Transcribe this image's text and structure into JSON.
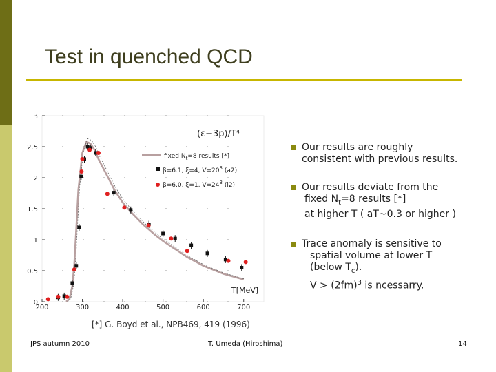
{
  "slide": {
    "title": "Test in quenched QCD",
    "bullets": [
      {
        "lines": [
          "Our results are roughly",
          "consistent with previous results."
        ]
      },
      {
        "lines": [
          "Our results deviate from the",
          "fixed N",
          "t",
          "=8 results [*]",
          "at higher T ( aT~0.3 or higher )"
        ]
      },
      {
        "lines": [
          "Trace anomaly is sensitive to",
          "spatial volume at lower T",
          "(below T",
          "c",
          ").",
          "V > (2fm)",
          "3",
          " is ncessarry."
        ]
      }
    ],
    "reference": "[*] G. Boyd et al., NPB469, 419 (1996)",
    "footer": {
      "left": "JPS autumn 2010",
      "center": "T. Umeda (Hiroshima)",
      "page": "14"
    },
    "colors": {
      "bar_dark": "#6e6e16",
      "bar_light": "#c9c96d",
      "rule": "#c7b600",
      "bullet": "#8a8a10",
      "curve": "#b8a0a0",
      "red": "#e02020"
    }
  },
  "chart_data": {
    "type": "scatter",
    "title": "(ε−3p)/T⁴",
    "xlabel": "T[MeV]",
    "ylabel": "",
    "xlim": [
      200,
      750
    ],
    "ylim": [
      0,
      3
    ],
    "x_ticks": [
      200,
      300,
      400,
      500,
      600,
      700
    ],
    "y_ticks": [
      0,
      0.5,
      1,
      1.5,
      2,
      2.5,
      3
    ],
    "legend": {
      "placement": "top-right",
      "entries": [
        {
          "label": "fixed N",
          "sub": "t",
          "suffix": "=8 results [*]",
          "marker": "line"
        },
        {
          "label": "β=6.1, ξ=4, V=20",
          "sup": "3",
          "suffix": " (a2)",
          "marker": "black-square"
        },
        {
          "label": "β=6.0, ξ=1, V=24",
          "sup": "3",
          "suffix": " (l2)",
          "marker": "red-circle"
        }
      ]
    },
    "series": [
      {
        "name": "fixed Nt=8 results [*]",
        "style": "line",
        "x": [
          260,
          268,
          275,
          280,
          285,
          290,
          300,
          310,
          320,
          330,
          340,
          360,
          380,
          400,
          420,
          450,
          480,
          500,
          530,
          560,
          600,
          650,
          700
        ],
        "y": [
          0.0,
          0.05,
          0.25,
          0.6,
          1.2,
          1.8,
          2.4,
          2.58,
          2.55,
          2.45,
          2.3,
          2.05,
          1.8,
          1.6,
          1.45,
          1.25,
          1.08,
          0.98,
          0.85,
          0.72,
          0.58,
          0.45,
          0.36
        ]
      },
      {
        "name": "β=6.1, ξ=4, V=20³ (a2)",
        "style": "black-square",
        "x": [
          240,
          255,
          275,
          285,
          292,
          297,
          305,
          313,
          320,
          333,
          378,
          420,
          465,
          500,
          530,
          570,
          610,
          655,
          695
        ],
        "y": [
          0.07,
          0.09,
          0.3,
          0.58,
          1.2,
          2.02,
          2.3,
          2.5,
          2.48,
          2.4,
          1.76,
          1.48,
          1.25,
          1.1,
          1.02,
          0.91,
          0.78,
          0.68,
          0.55
        ]
      },
      {
        "name": "β=6.0, ξ=1, V=24³ (l2)",
        "style": "red-circle",
        "x": [
          215,
          240,
          262,
          280,
          298,
          300,
          318,
          340,
          362,
          404,
          464,
          520,
          560,
          662,
          705
        ],
        "y": [
          0.04,
          0.08,
          0.08,
          0.52,
          2.1,
          2.3,
          2.45,
          2.4,
          1.74,
          1.52,
          1.23,
          1.02,
          0.82,
          0.66,
          0.64
        ]
      }
    ]
  }
}
